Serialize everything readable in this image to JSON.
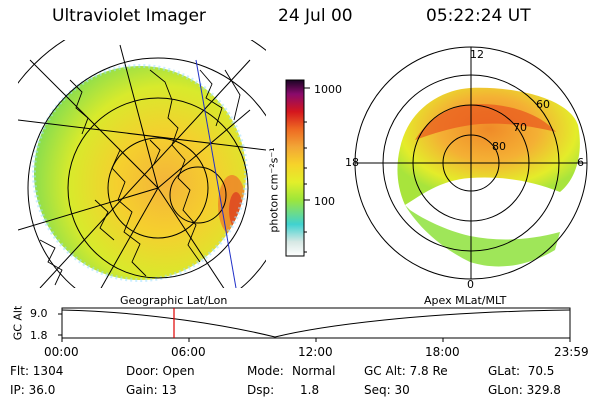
{
  "header": {
    "instrument": "Ultraviolet Imager",
    "date": "24 Jul 00",
    "time": "05:22:24 UT"
  },
  "colorbar": {
    "unit_label": "photon cm⁻²s⁻¹",
    "ticks": [
      "1000",
      "100"
    ],
    "scale": "log",
    "range": [
      10,
      1100
    ],
    "colors": [
      "#ffffff",
      "#d7e8e4",
      "#40d2d0",
      "#9ee63a",
      "#e3ef2a",
      "#f6d32a",
      "#f2a636",
      "#ee6a22",
      "#d4161e",
      "#8a0a6c",
      "#1a0424"
    ]
  },
  "polar_plot": {
    "mlt_labels": {
      "top": "12",
      "right": "6",
      "bottom": "0",
      "left": "18"
    },
    "mlat_labels": [
      "60",
      "70",
      "80"
    ]
  },
  "timeline": {
    "left_label": "Geographic Lat/Lon",
    "right_label": "Apex MLat/MLT",
    "axis_label": "GC Alt",
    "y_ticks": [
      "9.0",
      "1.8"
    ],
    "x_ticks": [
      "00:00",
      "06:00",
      "12:00",
      "18:00",
      "23:59"
    ],
    "marker_time": "05:22",
    "marker_color": "#e00000"
  },
  "info": {
    "flt": "Flt: 1304",
    "ip": "IP: 36.0",
    "door": "Door: Open",
    "gain": "Gain: 13",
    "mode_label": "Mode:",
    "mode_value": "Normal",
    "dsp_label": "Dsp:",
    "dsp_value": "1.8",
    "gcalt": "GC Alt: 7.8 Re",
    "seq": "Seq: 30",
    "glat": "GLat:  70.5",
    "glon": "GLon: 329.8"
  }
}
